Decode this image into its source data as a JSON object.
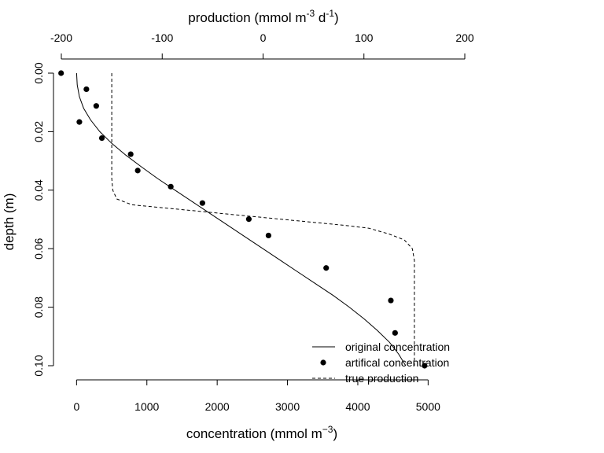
{
  "chart_data": {
    "type": "line",
    "top_axis": {
      "label": "production (mmol m",
      "label_sup1": "-3",
      "label_mid": " d",
      "label_sup2": "-1",
      "label_end": ")",
      "range": [
        -200,
        200
      ],
      "ticks": [
        -200,
        -100,
        0,
        100,
        200
      ]
    },
    "bottom_axis": {
      "label": "concentration (mmol m",
      "label_sup": "−3",
      "label_end": ")",
      "range": [
        -250,
        5600
      ],
      "ticks": [
        0,
        1000,
        2000,
        3000,
        4000,
        5000
      ]
    },
    "y_axis": {
      "label": "depth (m)",
      "range": [
        0,
        0.1
      ],
      "reversed": true,
      "ticks": [
        0.0,
        0.02,
        0.04,
        0.06,
        0.08,
        0.1
      ],
      "tick_labels": [
        "0.00",
        "0.02",
        "0.04",
        "0.06",
        "0.08",
        "0.10"
      ]
    },
    "series": [
      {
        "name": "original concentration",
        "axis": "bottom",
        "style": "solid",
        "points": [
          [
            0,
            0
          ],
          [
            10,
            0.004
          ],
          [
            40,
            0.008
          ],
          [
            100,
            0.012
          ],
          [
            200,
            0.016
          ],
          [
            330,
            0.02
          ],
          [
            500,
            0.024
          ],
          [
            700,
            0.028
          ],
          [
            920,
            0.032
          ],
          [
            1150,
            0.036
          ],
          [
            1400,
            0.04
          ],
          [
            1650,
            0.044
          ],
          [
            1900,
            0.048
          ],
          [
            2150,
            0.052
          ],
          [
            2400,
            0.056
          ],
          [
            2650,
            0.06
          ],
          [
            2900,
            0.064
          ],
          [
            3150,
            0.068
          ],
          [
            3400,
            0.072
          ],
          [
            3650,
            0.076
          ],
          [
            3880,
            0.08
          ],
          [
            4090,
            0.084
          ],
          [
            4280,
            0.088
          ],
          [
            4450,
            0.092
          ],
          [
            4580,
            0.096
          ],
          [
            4680,
            0.1
          ]
        ]
      },
      {
        "name": "artifical concentration",
        "axis": "bottom",
        "style": "points",
        "points": [
          [
            -220,
            0.0
          ],
          [
            140,
            0.0055
          ],
          [
            280,
            0.0112
          ],
          [
            40,
            0.0167
          ],
          [
            360,
            0.0222
          ],
          [
            770,
            0.0277
          ],
          [
            870,
            0.0333
          ],
          [
            1340,
            0.0388
          ],
          [
            1790,
            0.0444
          ],
          [
            2450,
            0.0499
          ],
          [
            2730,
            0.0555
          ],
          [
            3550,
            0.0666
          ],
          [
            4470,
            0.0777
          ],
          [
            4530,
            0.0888
          ],
          [
            4950,
            0.1
          ]
        ]
      },
      {
        "name": "true production",
        "axis": "top",
        "style": "dashed",
        "points": [
          [
            -150,
            0
          ],
          [
            -150,
            0.036
          ],
          [
            -149,
            0.04
          ],
          [
            -145,
            0.043
          ],
          [
            -130,
            0.045
          ],
          [
            -100,
            0.046
          ],
          [
            -70,
            0.047
          ],
          [
            -40,
            0.048
          ],
          [
            -10,
            0.049
          ],
          [
            20,
            0.05
          ],
          [
            50,
            0.051
          ],
          [
            80,
            0.052
          ],
          [
            105,
            0.053
          ],
          [
            125,
            0.055
          ],
          [
            140,
            0.057
          ],
          [
            148,
            0.06
          ],
          [
            150,
            0.064
          ],
          [
            150,
            0.1
          ]
        ]
      }
    ],
    "legend": {
      "position": "bottom-right",
      "entries": [
        "original concentration",
        "artifical concentration",
        "true production"
      ]
    },
    "grid": false
  }
}
